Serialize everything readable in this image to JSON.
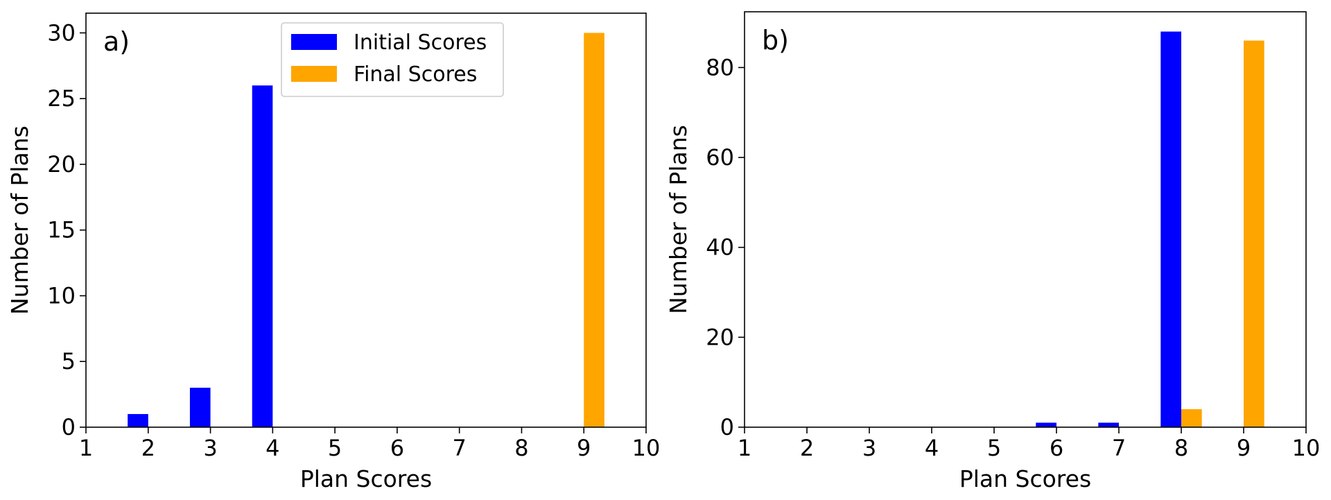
{
  "chart_data": [
    {
      "panel_label": "a)",
      "type": "bar",
      "xlabel": "Plan Scores",
      "ylabel": "Number of Plans",
      "xlim": [
        1,
        10
      ],
      "ylim": [
        0,
        31.5
      ],
      "xticks": [
        1,
        2,
        3,
        4,
        5,
        6,
        7,
        8,
        9,
        10
      ],
      "yticks": [
        0,
        5,
        10,
        15,
        20,
        25,
        30
      ],
      "grid": false,
      "legend": {
        "show": true,
        "position": "top-center"
      },
      "series": [
        {
          "name": "Initial Scores",
          "color": "#0000ff",
          "bars": [
            {
              "x0": 1.67,
              "x1": 2.0,
              "value": 1
            },
            {
              "x0": 2.67,
              "x1": 3.0,
              "value": 3
            },
            {
              "x0": 3.67,
              "x1": 4.0,
              "value": 26
            }
          ]
        },
        {
          "name": "Final Scores",
          "color": "#ffa500",
          "bars": [
            {
              "x0": 9.0,
              "x1": 9.33,
              "value": 30
            }
          ]
        }
      ]
    },
    {
      "panel_label": "b)",
      "type": "bar",
      "xlabel": "Plan Scores",
      "ylabel": "Number of Plans",
      "xlim": [
        1,
        10
      ],
      "ylim": [
        0,
        92.4
      ],
      "xticks": [
        1,
        2,
        3,
        4,
        5,
        6,
        7,
        8,
        9,
        10
      ],
      "yticks": [
        0,
        20,
        40,
        60,
        80
      ],
      "grid": false,
      "legend": {
        "show": false
      },
      "series": [
        {
          "name": "Initial Scores",
          "color": "#0000ff",
          "bars": [
            {
              "x0": 5.67,
              "x1": 6.0,
              "value": 1
            },
            {
              "x0": 6.67,
              "x1": 7.0,
              "value": 1
            },
            {
              "x0": 7.67,
              "x1": 8.0,
              "value": 88
            }
          ]
        },
        {
          "name": "Final Scores",
          "color": "#ffa500",
          "bars": [
            {
              "x0": 8.0,
              "x1": 8.33,
              "value": 4
            },
            {
              "x0": 9.0,
              "x1": 9.33,
              "value": 86
            }
          ]
        }
      ]
    }
  ]
}
